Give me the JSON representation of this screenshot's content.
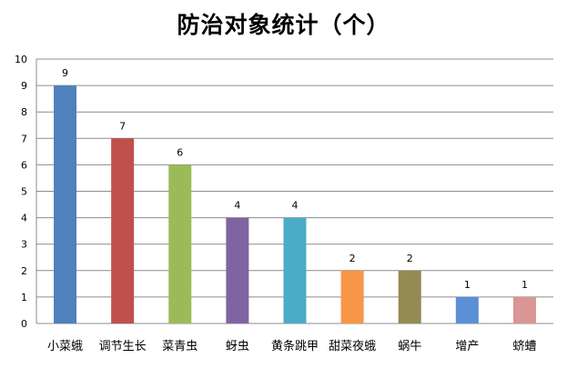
{
  "chart_data": {
    "type": "bar",
    "title": "防治对象统计（个）",
    "xlabel": "",
    "ylabel": "",
    "ylim": [
      0,
      10
    ],
    "yticks": [
      0,
      1,
      2,
      3,
      4,
      5,
      6,
      7,
      8,
      9,
      10
    ],
    "grid": true,
    "legend": "none",
    "categories": [
      "小菜蛾",
      "调节生长",
      "菜青虫",
      "蚜虫",
      "黄条跳甲",
      "甜菜夜蛾",
      "蜗牛",
      "增产",
      "蛴螬"
    ],
    "values": [
      9,
      7,
      6,
      4,
      4,
      2,
      2,
      1,
      1
    ],
    "colors": [
      "#4F81BD",
      "#C0504D",
      "#9BBB59",
      "#8064A2",
      "#4BACC6",
      "#F79646",
      "#948A54",
      "#5B8FD6",
      "#D99694"
    ]
  }
}
